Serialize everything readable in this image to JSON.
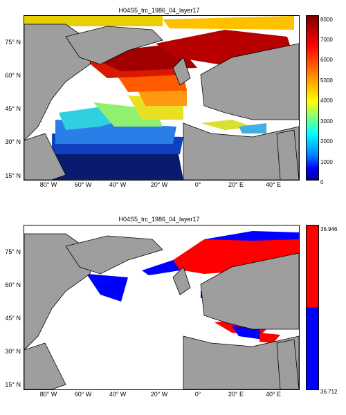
{
  "panels": [
    {
      "title": "H04S5_trc_1986_04_layer17",
      "colorbar": {
        "ticks": [
          "8000",
          "7000",
          "6000",
          "5000",
          "4000",
          "3000",
          "2000",
          "1000",
          "0"
        ],
        "min": 0,
        "max": 8000
      }
    },
    {
      "title": "H04S5_trc_1986_04_layer17",
      "colorbar": {
        "ticks": [
          "36.946",
          "36.712"
        ],
        "colors": [
          "#ff0000",
          "#0000ff"
        ]
      }
    }
  ],
  "axes": {
    "lat_labels": [
      "75° N",
      "60° N",
      "45° N",
      "30° N",
      "15° N"
    ],
    "lon_labels": [
      "80° W",
      "60° W",
      "40° W",
      "20° W",
      "0°",
      "20° E",
      "40° E"
    ]
  },
  "colors": {
    "land": "#9e9e9e",
    "coast": "#000000",
    "ocean": "#ffffff"
  }
}
